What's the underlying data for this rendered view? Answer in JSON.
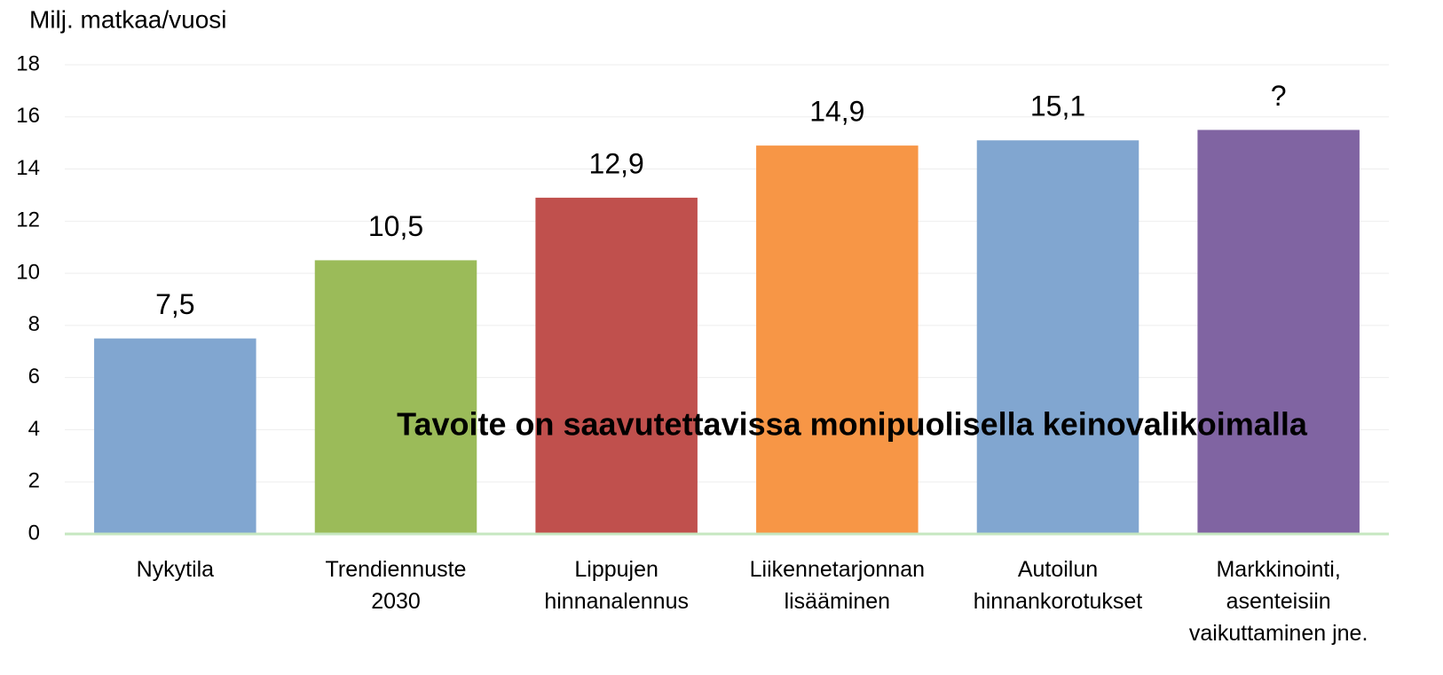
{
  "chart_data": {
    "type": "bar",
    "y_axis_label": "Milj. matkaa/vuosi",
    "annotation": "Tavoite on saavutettavissa monipuolisella keinovalikoimalla",
    "categories": [
      "Nykytila",
      "Trendiennuste\n2030",
      "Lippujen\nhinnanalennus",
      "Liikennetarjonnan\nlisääminen",
      "Autoilun\nhinnankorotukset",
      "Markkinointi,\nasenteisiin\nvaikuttaminen jne."
    ],
    "values": [
      7.5,
      10.5,
      12.9,
      14.9,
      15.1,
      15.5
    ],
    "value_labels": [
      "7,5",
      "10,5",
      "12,9",
      "14,9",
      "15,1",
      "?"
    ],
    "colors": [
      "#81a6d0",
      "#9bbb59",
      "#c0504d",
      "#f79646",
      "#81a6d0",
      "#8064a2"
    ],
    "ylim": [
      0,
      18
    ],
    "yticks": [
      0,
      2,
      4,
      6,
      8,
      10,
      12,
      14,
      16,
      18
    ],
    "grid": true
  }
}
